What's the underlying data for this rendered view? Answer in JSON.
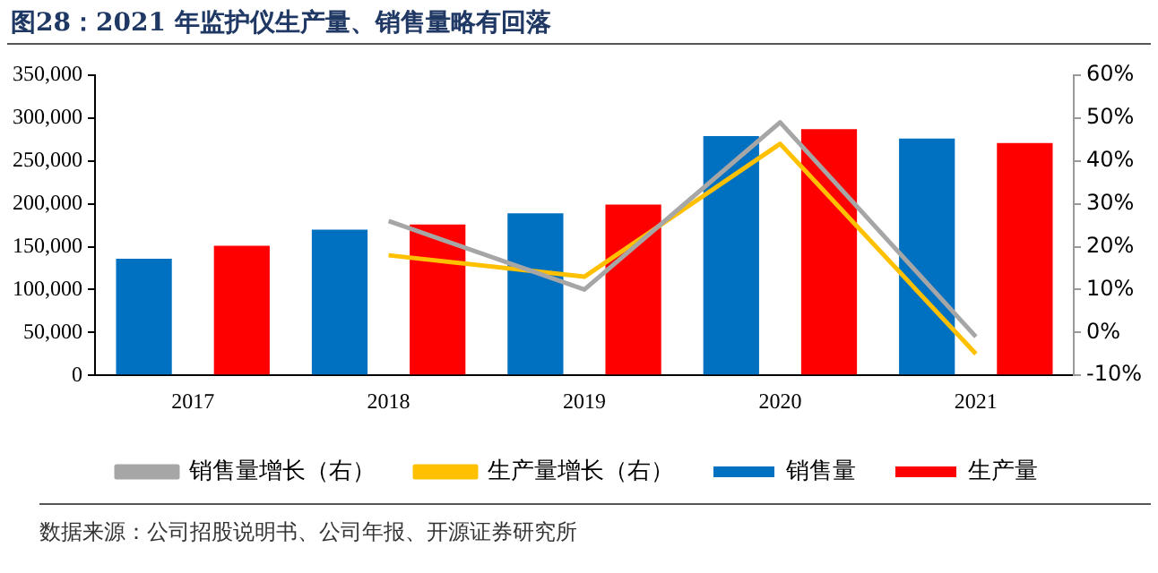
{
  "chart_data": {
    "type": "bar",
    "title": "图28：2021 年监护仪生产量、销售量略有回落",
    "categories": [
      "2017",
      "2018",
      "2019",
      "2020",
      "2021"
    ],
    "series": [
      {
        "name": "销售量",
        "color": "#0070c0",
        "values": [
          136000,
          170000,
          189000,
          279000,
          276000
        ]
      },
      {
        "name": "生产量",
        "color": "#ff0000",
        "values": [
          151000,
          176000,
          199000,
          287000,
          271000
        ]
      },
      {
        "name": "销售量增长（右）",
        "type": "line",
        "axis": "y2",
        "color": "#a6a6a6",
        "values": [
          null,
          26,
          10,
          49,
          -1
        ]
      },
      {
        "name": "生产量增长（右）",
        "type": "line",
        "axis": "y2",
        "color": "#ffc000",
        "values": [
          null,
          18,
          13,
          44,
          -5
        ]
      }
    ],
    "ylim": [
      0,
      350000
    ],
    "yticks": [
      {
        "value": 0,
        "label": "0"
      },
      {
        "value": 50000,
        "label": "50,000"
      },
      {
        "value": 100000,
        "label": "100,000"
      },
      {
        "value": 150000,
        "label": "150,000"
      },
      {
        "value": 200000,
        "label": "200,000"
      },
      {
        "value": 250000,
        "label": "250,000"
      },
      {
        "value": 300000,
        "label": "300,000"
      },
      {
        "value": 350000,
        "label": "350,000"
      }
    ],
    "y2lim": [
      -10,
      60
    ],
    "y2ticks": [
      {
        "value": -10,
        "label": "-10%"
      },
      {
        "value": 0,
        "label": "0%"
      },
      {
        "value": 10,
        "label": "10%"
      },
      {
        "value": 20,
        "label": "20%"
      },
      {
        "value": 30,
        "label": "30%"
      },
      {
        "value": 40,
        "label": "40%"
      },
      {
        "value": 50,
        "label": "50%"
      },
      {
        "value": 60,
        "label": "60%"
      }
    ],
    "grid": false,
    "legend": "bottom",
    "marker": "none",
    "annotations": [
      "数据来源：公司招股说明书、公司年报、开源证券研究所"
    ]
  }
}
